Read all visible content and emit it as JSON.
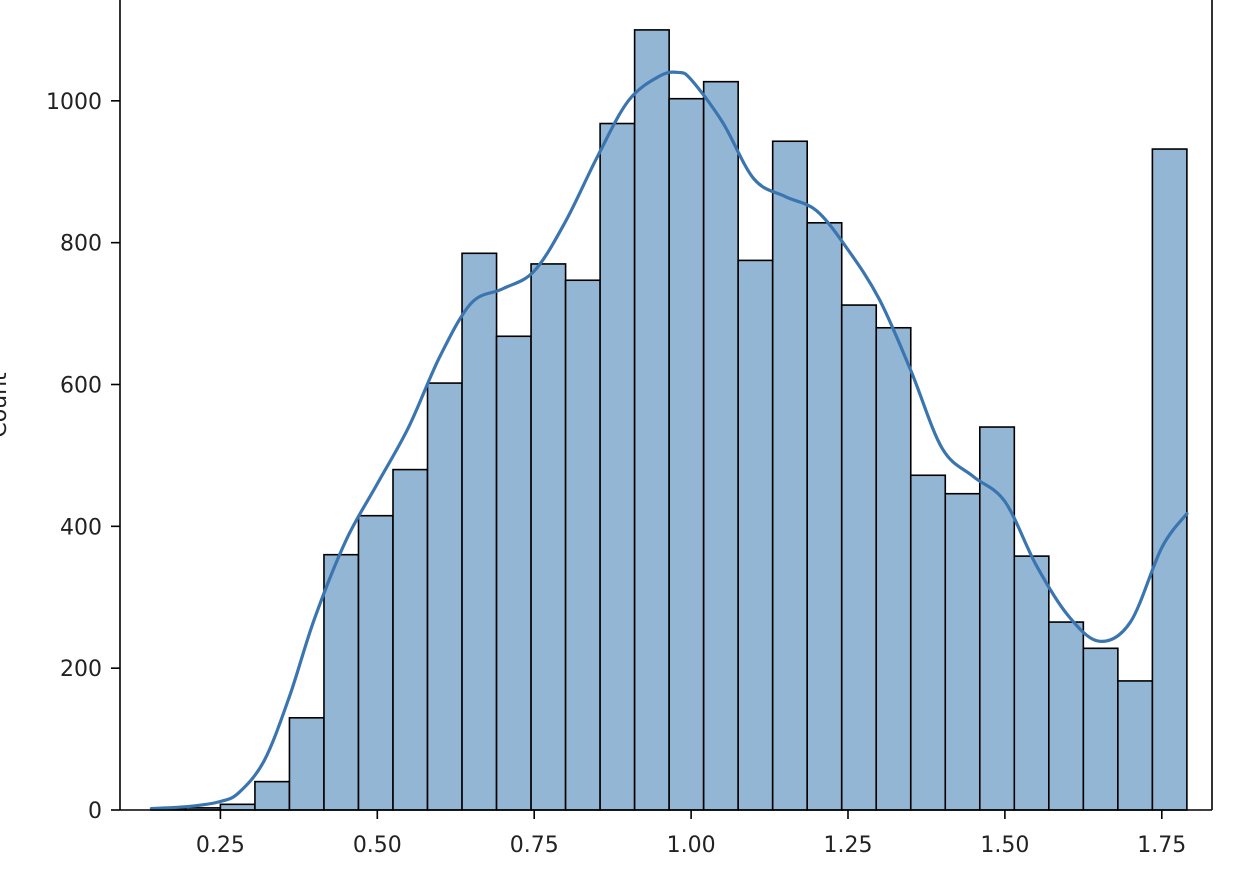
{
  "chart_data": {
    "type": "bar",
    "subtype": "histogram-with-kde",
    "title": "",
    "xlabel": "",
    "ylabel": "Count",
    "xlim": [
      0.09,
      1.83
    ],
    "ylim": [
      0,
      1145
    ],
    "grid": false,
    "legend": "none",
    "bar_color": "#94b6d5",
    "bar_edge_color": "#000000",
    "kde_color": "#3b75af",
    "xticks": [
      0.25,
      0.5,
      0.75,
      1.0,
      1.25,
      1.5,
      1.75
    ],
    "xtick_labels": [
      "0.25",
      "0.50",
      "0.75",
      "1.00",
      "1.25",
      "1.50",
      "1.75"
    ],
    "yticks": [
      0,
      200,
      400,
      600,
      800,
      1000
    ],
    "ytick_labels": [
      "0",
      "200",
      "400",
      "600",
      "800",
      "1000"
    ],
    "bins": [
      {
        "x0": 0.14,
        "x1": 0.195,
        "count": 2
      },
      {
        "x0": 0.195,
        "x1": 0.25,
        "count": 3
      },
      {
        "x0": 0.25,
        "x1": 0.305,
        "count": 8
      },
      {
        "x0": 0.305,
        "x1": 0.36,
        "count": 40
      },
      {
        "x0": 0.36,
        "x1": 0.415,
        "count": 130
      },
      {
        "x0": 0.415,
        "x1": 0.47,
        "count": 360
      },
      {
        "x0": 0.47,
        "x1": 0.525,
        "count": 415
      },
      {
        "x0": 0.525,
        "x1": 0.58,
        "count": 480
      },
      {
        "x0": 0.58,
        "x1": 0.635,
        "count": 602
      },
      {
        "x0": 0.635,
        "x1": 0.69,
        "count": 785
      },
      {
        "x0": 0.69,
        "x1": 0.745,
        "count": 668
      },
      {
        "x0": 0.745,
        "x1": 0.8,
        "count": 770
      },
      {
        "x0": 0.8,
        "x1": 0.855,
        "count": 747
      },
      {
        "x0": 0.855,
        "x1": 0.91,
        "count": 968
      },
      {
        "x0": 0.91,
        "x1": 0.965,
        "count": 1100
      },
      {
        "x0": 0.965,
        "x1": 1.02,
        "count": 1003
      },
      {
        "x0": 1.02,
        "x1": 1.075,
        "count": 1027
      },
      {
        "x0": 1.075,
        "x1": 1.13,
        "count": 775
      },
      {
        "x0": 1.13,
        "x1": 1.185,
        "count": 943
      },
      {
        "x0": 1.185,
        "x1": 1.24,
        "count": 828
      },
      {
        "x0": 1.24,
        "x1": 1.295,
        "count": 712
      },
      {
        "x0": 1.295,
        "x1": 1.35,
        "count": 680
      },
      {
        "x0": 1.35,
        "x1": 1.405,
        "count": 472
      },
      {
        "x0": 1.405,
        "x1": 1.46,
        "count": 446
      },
      {
        "x0": 1.46,
        "x1": 1.515,
        "count": 540
      },
      {
        "x0": 1.515,
        "x1": 1.57,
        "count": 358
      },
      {
        "x0": 1.57,
        "x1": 1.625,
        "count": 265
      },
      {
        "x0": 1.625,
        "x1": 1.68,
        "count": 228
      },
      {
        "x0": 1.68,
        "x1": 1.735,
        "count": 182
      },
      {
        "x0": 1.735,
        "x1": 1.79,
        "count": 932
      }
    ],
    "kde": {
      "x": [
        0.14,
        0.2,
        0.25,
        0.28,
        0.32,
        0.36,
        0.4,
        0.45,
        0.5,
        0.55,
        0.6,
        0.65,
        0.7,
        0.75,
        0.8,
        0.85,
        0.9,
        0.95,
        0.98,
        1.0,
        1.05,
        1.1,
        1.15,
        1.2,
        1.25,
        1.3,
        1.35,
        1.4,
        1.45,
        1.5,
        1.55,
        1.6,
        1.65,
        1.7,
        1.75,
        1.79
      ],
      "y": [
        2,
        5,
        12,
        25,
        70,
        160,
        270,
        380,
        460,
        540,
        640,
        715,
        735,
        760,
        830,
        920,
        1000,
        1035,
        1040,
        1030,
        970,
        890,
        865,
        845,
        790,
        720,
        620,
        510,
        470,
        435,
        345,
        275,
        238,
        265,
        370,
        418
      ]
    }
  }
}
